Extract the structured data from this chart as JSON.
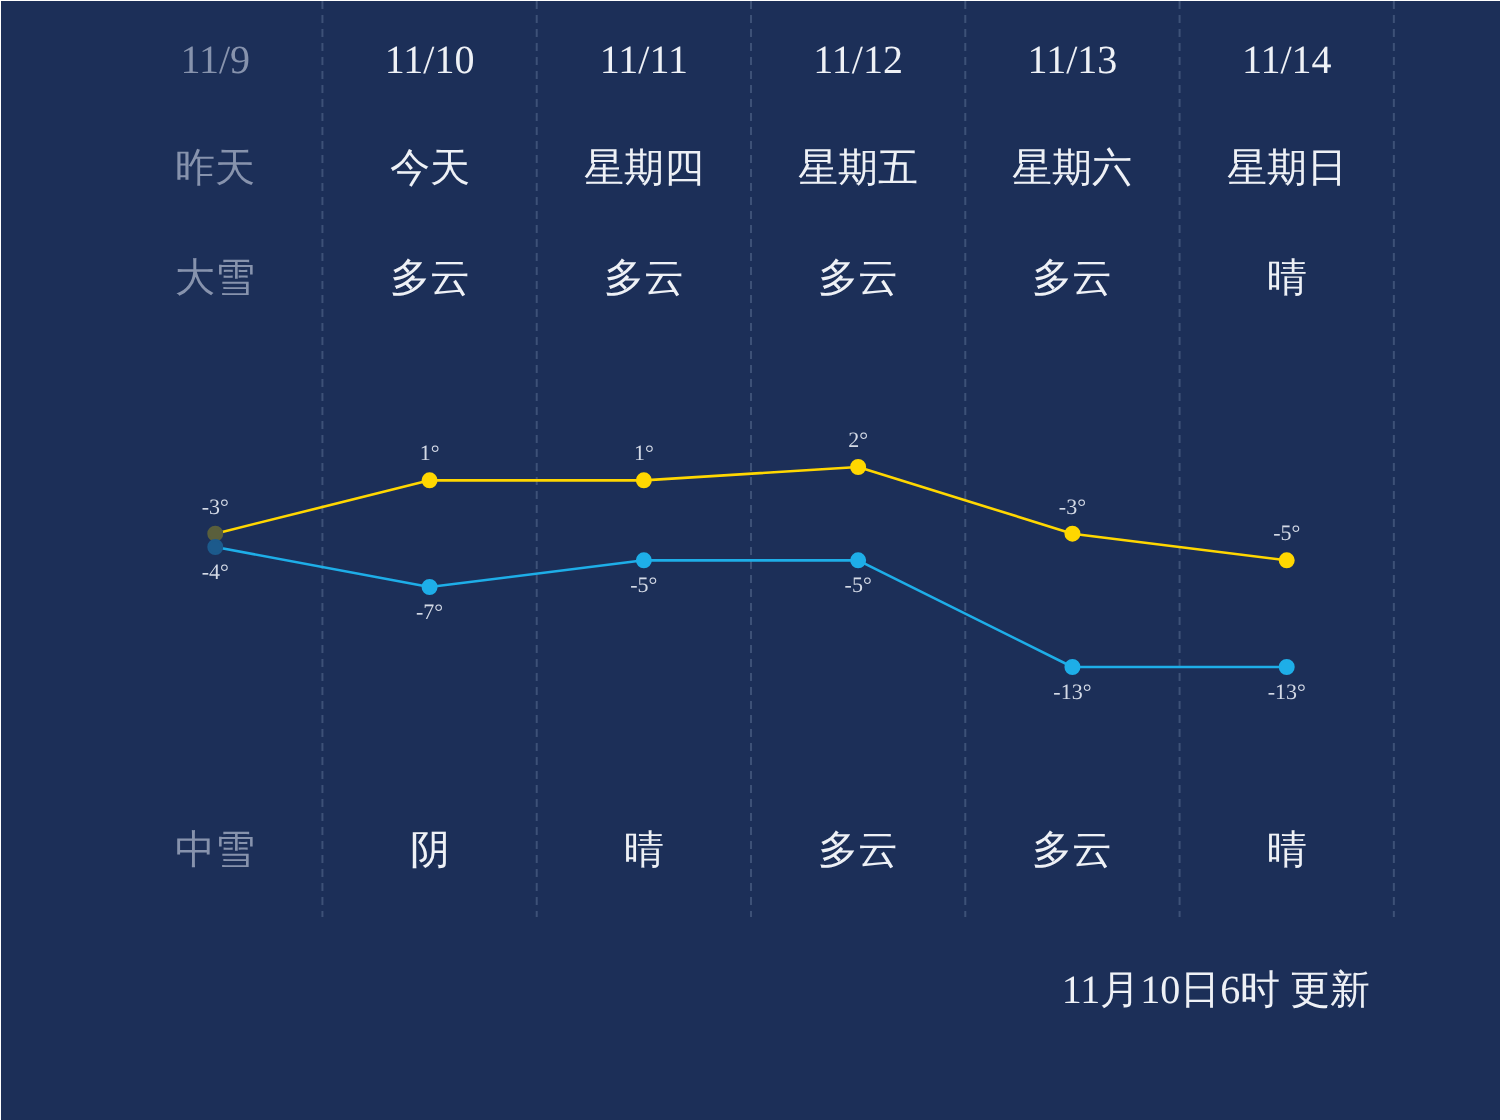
{
  "chart_data": {
    "type": "line",
    "categories": [
      "11/9",
      "11/10",
      "11/11",
      "11/12",
      "11/13",
      "11/14"
    ],
    "series": [
      {
        "color": "#ffd700",
        "colors": [
          "#5a5f3c",
          "#ffd700",
          "#ffd700",
          "#ffd700",
          "#ffd700",
          "#ffd700"
        ],
        "values": [
          -3,
          1,
          1,
          2,
          -3,
          -5
        ],
        "value_labels": [
          "-3°",
          "1°",
          "1°",
          "2°",
          "-3°",
          "-5°"
        ]
      },
      {
        "color": "#1eaee8",
        "colors": [
          "#1c5a8c",
          "#1eaee8",
          "#1eaee8",
          "#1eaee8",
          "#1eaee8",
          "#1eaee8"
        ],
        "values": [
          -4,
          -7,
          -5,
          -5,
          -13,
          -13
        ],
        "value_labels": [
          "-4°",
          "-7°",
          "-5°",
          "-5°",
          "-13°",
          "-13°"
        ]
      }
    ],
    "marker": "circle",
    "annotations": [
      "昨天",
      "今天",
      "星期四",
      "星期五",
      "星期六",
      "星期日",
      "大雪",
      "多云",
      "多云",
      "多云",
      "多云",
      "晴",
      "中雪",
      "阴",
      "晴",
      "多云",
      "多云",
      "晴",
      "11月10日6时 更新"
    ]
  }
}
